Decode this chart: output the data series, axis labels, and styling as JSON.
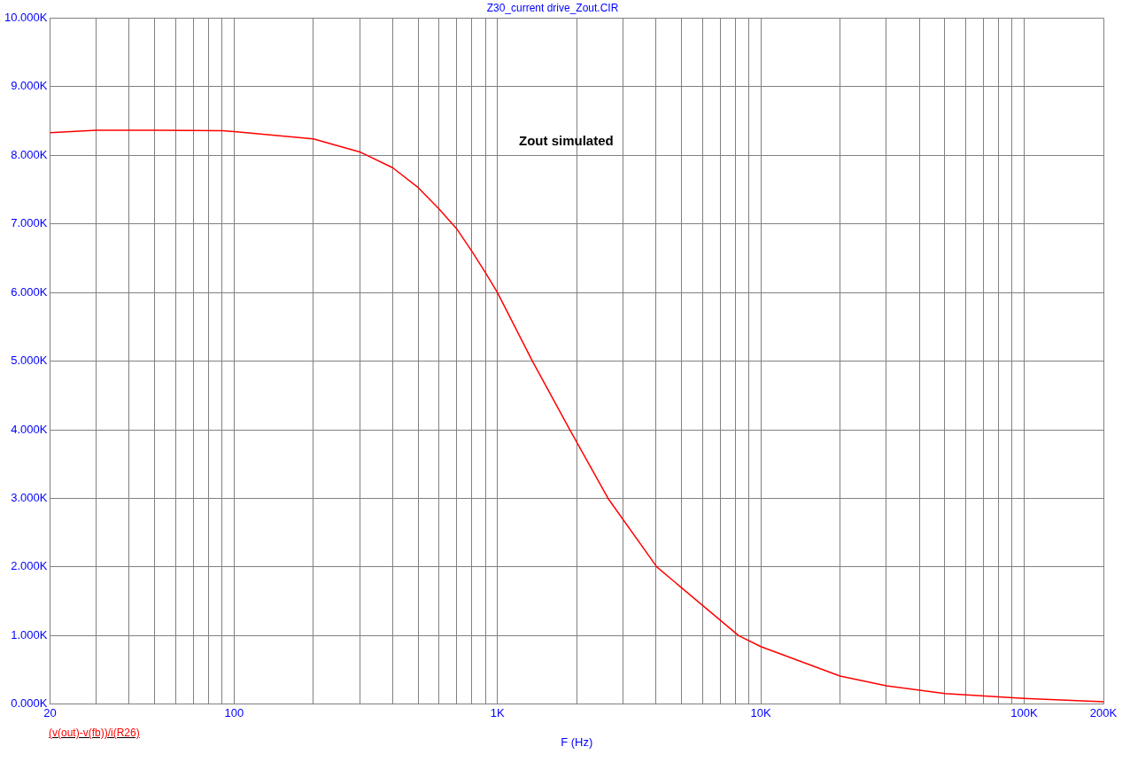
{
  "chart_data": {
    "type": "line",
    "title": "Z30_current drive_Zout.CIR",
    "xlabel": "F (Hz)",
    "annotations": [
      "Zout simulated"
    ],
    "log": "x",
    "grid": true,
    "legend": "bottom left",
    "marker": "none",
    "line_style": "solid",
    "xlim": [
      20,
      200000
    ],
    "xticks": [
      20,
      {
        "value": 30,
        "label": null
      },
      {
        "value": 40,
        "label": null
      },
      {
        "value": 50,
        "label": null
      },
      {
        "value": 60,
        "label": null
      },
      {
        "value": 70,
        "label": null
      },
      {
        "value": 80,
        "label": null
      },
      {
        "value": 90,
        "label": null
      },
      100,
      {
        "value": 200,
        "label": null
      },
      {
        "value": 300,
        "label": null
      },
      {
        "value": 400,
        "label": null
      },
      {
        "value": 500,
        "label": null
      },
      {
        "value": 600,
        "label": null
      },
      {
        "value": 700,
        "label": null
      },
      {
        "value": 800,
        "label": null
      },
      {
        "value": 900,
        "label": null
      },
      {
        "value": 1000,
        "label": "1K"
      },
      {
        "value": 2000,
        "label": null
      },
      {
        "value": 3000,
        "label": null
      },
      {
        "value": 4000,
        "label": null
      },
      {
        "value": 5000,
        "label": null
      },
      {
        "value": 6000,
        "label": null
      },
      {
        "value": 7000,
        "label": null
      },
      {
        "value": 8000,
        "label": null
      },
      {
        "value": 9000,
        "label": null
      },
      {
        "value": 10000,
        "label": "10K"
      },
      {
        "value": 20000,
        "label": null
      },
      {
        "value": 30000,
        "label": null
      },
      {
        "value": 40000,
        "label": null
      },
      {
        "value": 50000,
        "label": null
      },
      {
        "value": 60000,
        "label": null
      },
      {
        "value": 70000,
        "label": null
      },
      {
        "value": 80000,
        "label": null
      },
      {
        "value": 90000,
        "label": null
      },
      {
        "value": 100000,
        "label": "100K"
      },
      {
        "value": 200000,
        "label": "200K"
      }
    ],
    "ylim": [
      0,
      10000
    ],
    "yticks": [
      {
        "value": 0,
        "label": "0.000K"
      },
      {
        "value": 1000,
        "label": "1.000K"
      },
      {
        "value": 2000,
        "label": "2.000K"
      },
      {
        "value": 3000,
        "label": "3.000K"
      },
      {
        "value": 4000,
        "label": "4.000K"
      },
      {
        "value": 5000,
        "label": "5.000K"
      },
      {
        "value": 6000,
        "label": "6.000K"
      },
      {
        "value": 7000,
        "label": "7.000K"
      },
      {
        "value": 8000,
        "label": "8.000K"
      },
      {
        "value": 9000,
        "label": "9.000K"
      },
      {
        "value": 10000,
        "label": "10.000K"
      }
    ],
    "series": [
      {
        "name": "(v(out)-v(fb))/i(R26)",
        "color": "#ff0000",
        "x": [
          20,
          30,
          50,
          90,
          100,
          200,
          300,
          400,
          500,
          600,
          700,
          800,
          900,
          1000,
          1358,
          1884,
          2630,
          4030,
          8240,
          10000,
          20000,
          30000,
          50000,
          100000,
          200000
        ],
        "values": [
          8330,
          8365,
          8365,
          8360,
          8345,
          8240,
          8050,
          7820,
          7530,
          7220,
          6930,
          6600,
          6290,
          6000,
          5000,
          4000,
          3000,
          2000,
          1000,
          840,
          410,
          270,
          155,
          85,
          35
        ]
      }
    ]
  }
}
